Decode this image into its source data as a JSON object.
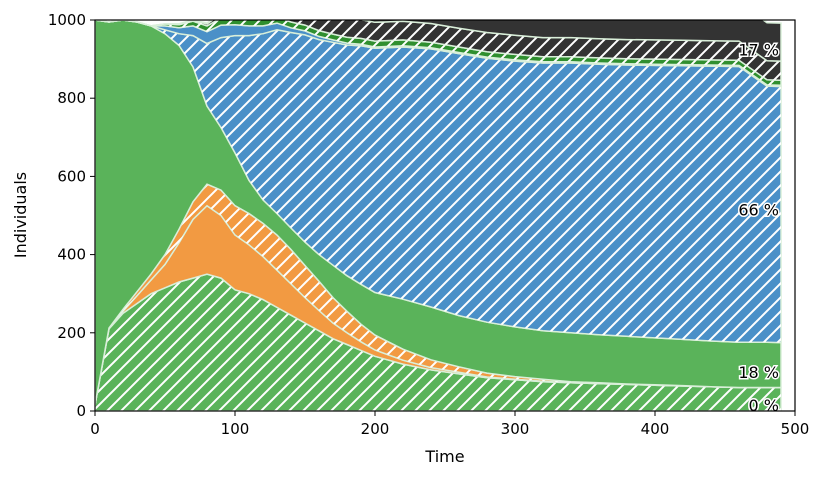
{
  "chart_data": {
    "type": "area",
    "stacked": true,
    "xlabel": "Time",
    "ylabel": "Individuals",
    "xlim": [
      0,
      500
    ],
    "ylim": [
      0,
      1000
    ],
    "xticks": [
      "0",
      "100",
      "200",
      "300",
      "400",
      "500"
    ],
    "yticks": [
      "0",
      "200",
      "400",
      "600",
      "800",
      "1000"
    ],
    "x": [
      0,
      10,
      20,
      30,
      40,
      50,
      60,
      70,
      80,
      90,
      100,
      110,
      120,
      130,
      140,
      150,
      160,
      170,
      180,
      190,
      200,
      220,
      240,
      260,
      280,
      300,
      320,
      340,
      360,
      380,
      400,
      420,
      440,
      460,
      480,
      490
    ],
    "series": [
      {
        "color": "#5ab35a",
        "hatched": true,
        "values": [
          15,
          210,
          250,
          275,
          300,
          315,
          330,
          340,
          350,
          340,
          310,
          300,
          285,
          265,
          245,
          225,
          205,
          185,
          170,
          155,
          140,
          120,
          105,
          95,
          85,
          80,
          75,
          72,
          70,
          68,
          66,
          64,
          62,
          60,
          60,
          60
        ]
      },
      {
        "color": "#f29a42",
        "hatched": false,
        "values": [
          0,
          2,
          5,
          20,
          35,
          60,
          100,
          150,
          175,
          160,
          140,
          125,
          110,
          95,
          80,
          65,
          52,
          40,
          30,
          22,
          16,
          10,
          6,
          4,
          2,
          1,
          1,
          0,
          0,
          0,
          0,
          0,
          0,
          0,
          0,
          0
        ]
      },
      {
        "color": "#f29a42",
        "hatched": true,
        "values": [
          0,
          0,
          5,
          10,
          15,
          25,
          35,
          45,
          55,
          65,
          75,
          80,
          85,
          90,
          88,
          82,
          75,
          65,
          55,
          45,
          38,
          28,
          20,
          14,
          10,
          7,
          5,
          3,
          2,
          1,
          1,
          1,
          0,
          0,
          0,
          0
        ]
      },
      {
        "color": "#5ab35a",
        "hatched": false,
        "values": [
          985,
          783,
          740,
          690,
          635,
          565,
          470,
          345,
          200,
          160,
          135,
          85,
          60,
          55,
          55,
          60,
          68,
          83,
          91,
          102,
          109,
          128,
          135,
          131,
          130,
          127,
          124,
          125,
          123,
          122,
          120,
          118,
          117,
          116,
          116,
          115
        ]
      },
      {
        "color": "#4a90c8",
        "hatched": true,
        "values": [
          0,
          0,
          0,
          0,
          0,
          10,
          30,
          80,
          160,
          230,
          300,
          370,
          425,
          470,
          500,
          530,
          550,
          570,
          590,
          610,
          625,
          645,
          660,
          670,
          675,
          680,
          685,
          690,
          692,
          694,
          697,
          700,
          703,
          705,
          655,
          655
        ]
      },
      {
        "color": "#4a90c8",
        "hatched": false,
        "values": [
          0,
          0,
          0,
          0,
          0,
          10,
          15,
          25,
          30,
          32,
          28,
          25,
          20,
          17,
          12,
          10,
          8,
          6,
          5,
          4,
          3,
          3,
          3,
          3,
          3,
          3,
          3,
          3,
          3,
          3,
          3,
          3,
          3,
          3,
          3,
          3
        ]
      },
      {
        "color": "#2f8f2f",
        "hatched": true,
        "values": [
          0,
          0,
          0,
          0,
          0,
          5,
          8,
          12,
          15,
          18,
          18,
          17,
          17,
          16,
          15,
          15,
          15,
          15,
          15,
          15,
          15,
          15,
          14,
          14,
          14,
          14,
          13,
          13,
          13,
          13,
          13,
          13,
          13,
          13,
          13,
          13
        ]
      },
      {
        "color": "#333333",
        "hatched": true,
        "values": [
          0,
          0,
          0,
          0,
          0,
          0,
          2,
          3,
          5,
          10,
          15,
          20,
          25,
          30,
          35,
          40,
          42,
          45,
          47,
          48,
          48,
          48,
          48,
          48,
          49,
          49,
          49,
          49,
          49,
          49,
          49,
          49,
          49,
          49,
          49,
          49
        ]
      },
      {
        "color": "#333333",
        "hatched": false,
        "values": [
          0,
          0,
          0,
          0,
          0,
          0,
          0,
          0,
          2,
          5,
          10,
          15,
          23,
          30,
          40,
          50,
          60,
          70,
          77,
          85,
          90,
          93,
          95,
          96,
          96,
          96,
          97,
          97,
          97,
          97,
          97,
          97,
          97,
          97,
          97,
          97
        ]
      }
    ],
    "annotations": [
      {
        "text": "17 %",
        "y": 925
      },
      {
        "text": "66 %",
        "y": 515
      },
      {
        "text": "18 %",
        "y": 100
      },
      {
        "text": "0 %",
        "y": 15
      }
    ],
    "grid": false
  }
}
